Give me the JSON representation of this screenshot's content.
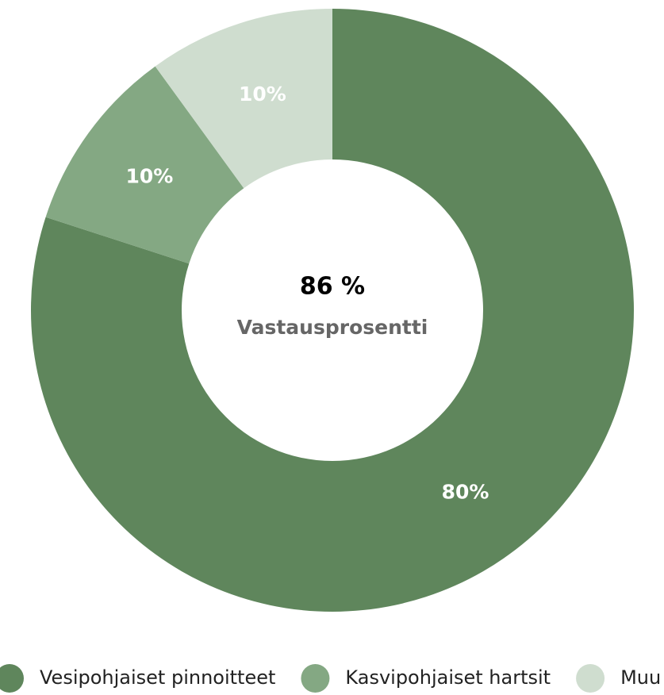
{
  "chart_data": {
    "type": "donut",
    "center_value": "86 %",
    "center_label": "Vastausprosentti",
    "categories": [
      "Vesipohjaiset pinnoitteet",
      "Kasvipohjaiset hartsit",
      "Muu"
    ],
    "values": [
      80,
      10,
      10
    ],
    "value_labels": [
      "80%",
      "10%",
      "10%"
    ],
    "colors": [
      "#5f865c",
      "#84a883",
      "#cfddcf"
    ],
    "legend": "bottom"
  }
}
